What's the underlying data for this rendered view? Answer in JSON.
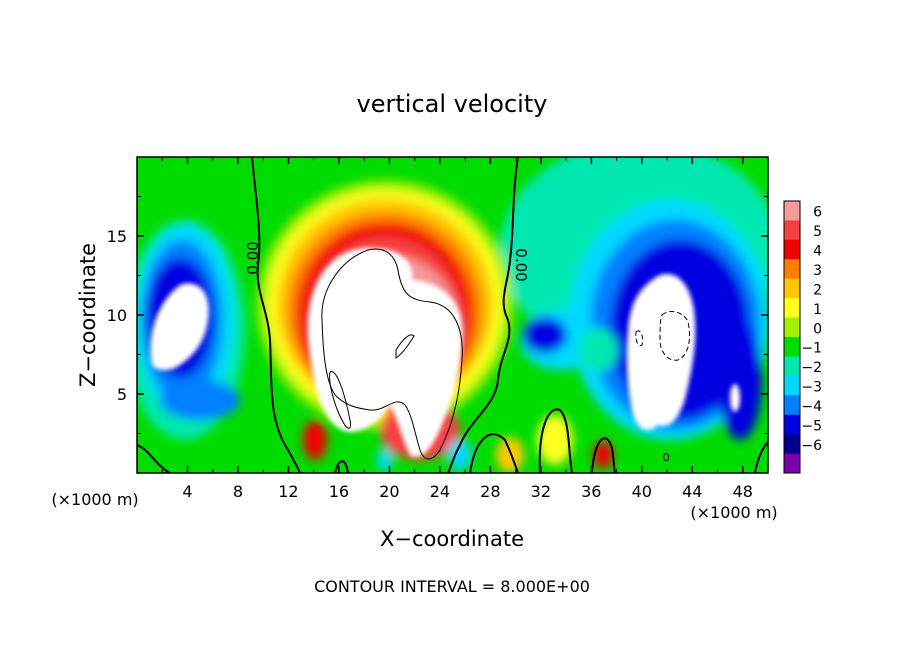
{
  "chart_data": {
    "type": "heatmap",
    "title": "vertical velocity",
    "xlabel": "X−coordinate",
    "ylabel": "Z−coordinate",
    "x_unit_left": "(×1000 m)",
    "x_unit_right": "(×1000 m)",
    "xlim": [
      0,
      50
    ],
    "ylim": [
      0,
      20
    ],
    "x_ticks": [
      4,
      8,
      12,
      16,
      20,
      24,
      28,
      32,
      36,
      40,
      44,
      48
    ],
    "y_ticks": [
      5,
      10,
      15
    ],
    "footer": "CONTOUR INTERVAL = 8.000E+00",
    "contour_labels": [
      {
        "text": "0.00",
        "x": 9.4,
        "z": 13.5
      },
      {
        "text": "0.00",
        "x": 30.0,
        "z": 13.0
      }
    ],
    "colorbar": {
      "levels": [
        6,
        5,
        4,
        3,
        2,
        1,
        0,
        -1,
        -2,
        -3,
        -4,
        -5,
        -6
      ],
      "colors": [
        "#f59a9a",
        "#f64040",
        "#f00000",
        "#ff7f00",
        "#ffc800",
        "#ffff20",
        "#a0f000",
        "#00dc00",
        "#00e8b0",
        "#00d8ff",
        "#0080ff",
        "#0000e0",
        "#000090",
        "#7a00a8"
      ]
    }
  }
}
